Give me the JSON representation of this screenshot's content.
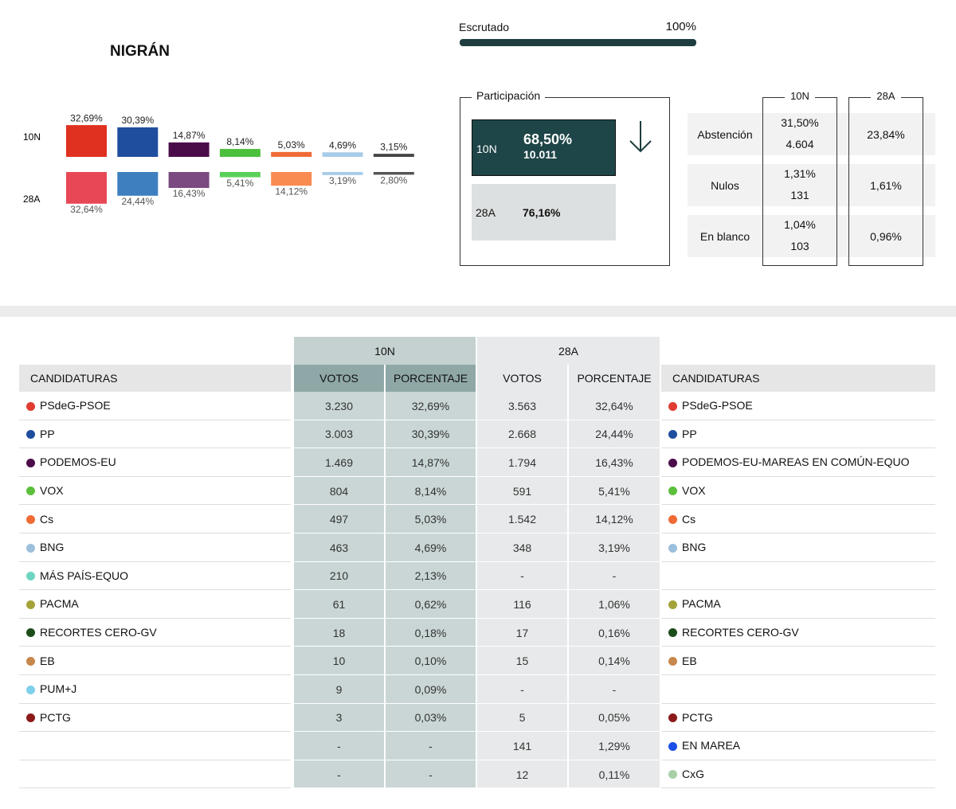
{
  "header": {
    "title": "NIGRÁN",
    "escrutado_label": "Escrutado",
    "escrutado": {
      "value": 100,
      "label": "100%"
    }
  },
  "bars": {
    "series": [
      {
        "name": "10N",
        "values": [
          32.69,
          30.39,
          14.87,
          8.14,
          5.03,
          4.69,
          3.15
        ],
        "value_labels": [
          "32,69%",
          "30,39%",
          "14,87%",
          "8,14%",
          "5,03%",
          "4,69%",
          "3,15%"
        ],
        "colors": [
          "#e0301f",
          "#1f4e9e",
          "#4b0d4a",
          "#4cbf3c",
          "#f06a35",
          "#a8cce8",
          "#444444"
        ]
      },
      {
        "name": "28A",
        "values": [
          32.64,
          24.44,
          16.43,
          5.41,
          14.12,
          3.19,
          2.8
        ],
        "value_labels": [
          "32,64%",
          "24,44%",
          "16,43%",
          "5,41%",
          "14,12%",
          "3,19%",
          "2,80%"
        ],
        "colors": [
          "#e84855",
          "#3e7fbf",
          "#7a4a80",
          "#5ad05a",
          "#f98a50",
          "#a8cce8",
          "#555555"
        ]
      }
    ]
  },
  "participacion": {
    "title": "Participación",
    "rows": [
      {
        "name": "10N",
        "pct": "68,50%",
        "votes": "10.011"
      },
      {
        "name": "28A",
        "pct": "76,16%"
      }
    ]
  },
  "otros": {
    "columns": [
      "10N",
      "28A"
    ],
    "rows": [
      {
        "name": "Abstención",
        "pct10": "31,50%",
        "votes10": "4.604",
        "pct28": "23,84%"
      },
      {
        "name": "Nulos",
        "pct10": "1,31%",
        "votes10": "131",
        "pct28": "1,61%"
      },
      {
        "name": "En blanco",
        "pct10": "1,04%",
        "votes10": "103",
        "pct28": "0,96%"
      }
    ]
  },
  "table": {
    "groups": [
      "10N",
      "28A"
    ],
    "columns": [
      "CANDIDATURAS",
      "VOTOS",
      "PORCENTAJE",
      "VOTOS",
      "PORCENTAJE",
      "CANDIDATURAS"
    ],
    "rows": [
      {
        "left": "PSdeG-PSOE",
        "left_color": "#e03c31",
        "v10": "3.230",
        "p10": "32,69%",
        "v28": "3.563",
        "p28": "32,64%",
        "right": "PSdeG-PSOE",
        "right_color": "#e03c31"
      },
      {
        "left": "PP",
        "left_color": "#1f4e9e",
        "v10": "3.003",
        "p10": "30,39%",
        "v28": "2.668",
        "p28": "24,44%",
        "right": "PP",
        "right_color": "#1f4e9e"
      },
      {
        "left": "PODEMOS-EU",
        "left_color": "#4b0d4a",
        "v10": "1.469",
        "p10": "14,87%",
        "v28": "1.794",
        "p28": "16,43%",
        "right": "PODEMOS-EU-MAREAS EN COMÚN-EQUO",
        "right_color": "#4b0d4a"
      },
      {
        "left": "VOX",
        "left_color": "#5cbf3c",
        "v10": "804",
        "p10": "8,14%",
        "v28": "591",
        "p28": "5,41%",
        "right": "VOX",
        "right_color": "#5cbf3c"
      },
      {
        "left": "Cs",
        "left_color": "#f06a35",
        "v10": "497",
        "p10": "5,03%",
        "v28": "1.542",
        "p28": "14,12%",
        "right": "Cs",
        "right_color": "#f06a35"
      },
      {
        "left": "BNG",
        "left_color": "#9bbfdc",
        "v10": "463",
        "p10": "4,69%",
        "v28": "348",
        "p28": "3,19%",
        "right": "BNG",
        "right_color": "#9bbfdc"
      },
      {
        "left": "MÁS PAÍS-EQUO",
        "left_color": "#6dd6c3",
        "v10": "210",
        "p10": "2,13%",
        "v28": "-",
        "p28": "-",
        "right": null,
        "right_color": null
      },
      {
        "left": "PACMA",
        "left_color": "#a3a33a",
        "v10": "61",
        "p10": "0,62%",
        "v28": "116",
        "p28": "1,06%",
        "right": "PACMA",
        "right_color": "#a3a33a"
      },
      {
        "left": "RECORTES CERO-GV",
        "left_color": "#1d4d1b",
        "v10": "18",
        "p10": "0,18%",
        "v28": "17",
        "p28": "0,16%",
        "right": "RECORTES CERO-GV",
        "right_color": "#1d4d1b"
      },
      {
        "left": "EB",
        "left_color": "#c8874b",
        "v10": "10",
        "p10": "0,10%",
        "v28": "15",
        "p28": "0,14%",
        "right": "EB",
        "right_color": "#c8874b"
      },
      {
        "left": "PUM+J",
        "left_color": "#7fd0ea",
        "v10": "9",
        "p10": "0,09%",
        "v28": "-",
        "p28": "-",
        "right": null,
        "right_color": null
      },
      {
        "left": "PCTG",
        "left_color": "#8b1a1a",
        "v10": "3",
        "p10": "0,03%",
        "v28": "5",
        "p28": "0,05%",
        "right": "PCTG",
        "right_color": "#8b1a1a"
      },
      {
        "left": null,
        "left_color": null,
        "v10": "-",
        "p10": "-",
        "v28": "141",
        "p28": "1,29%",
        "right": "EN MAREA",
        "right_color": "#1b4fe8"
      },
      {
        "left": null,
        "left_color": null,
        "v10": "-",
        "p10": "-",
        "v28": "12",
        "p28": "0,11%",
        "right": "CxG",
        "right_color": "#a9cfa9"
      }
    ]
  }
}
